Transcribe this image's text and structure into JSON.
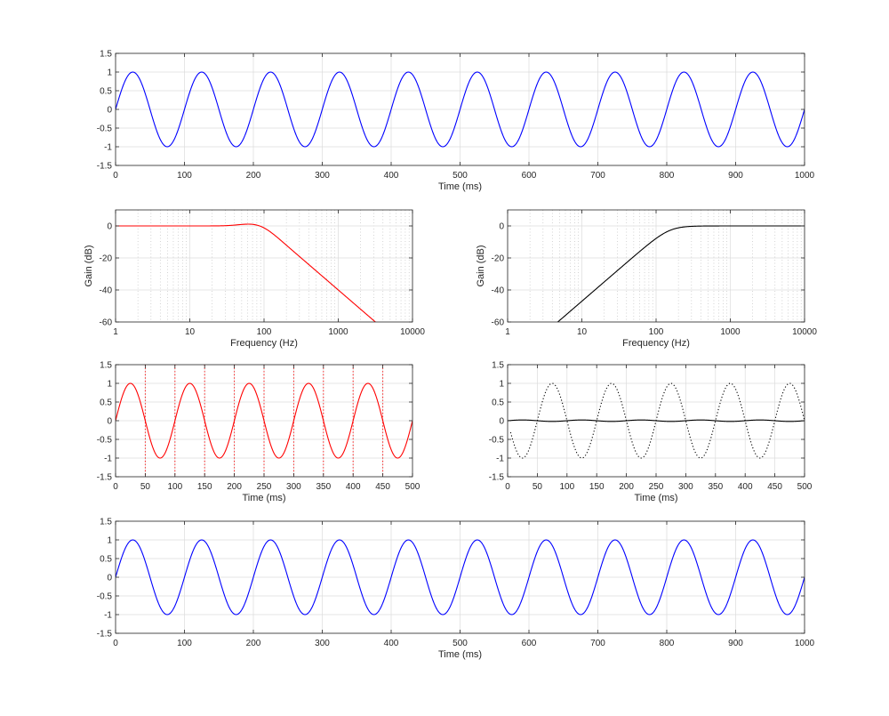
{
  "figure": {
    "background": "#ffffff",
    "axis_color": "#262626",
    "grid_color": "#dcdcdc"
  },
  "chart_data": [
    {
      "id": "panel-1",
      "type": "line",
      "title": "",
      "xlabel": "Time (ms)",
      "ylabel": "",
      "xscale": "linear",
      "xlim": [
        0,
        1000
      ],
      "ylim": [
        -1.5,
        1.5
      ],
      "xticks": [
        0,
        100,
        200,
        300,
        400,
        500,
        600,
        700,
        800,
        900,
        1000
      ],
      "xtick_labels": [
        "0",
        "100",
        "200",
        "300",
        "400",
        "500",
        "600",
        "700",
        "800",
        "900",
        "1000"
      ],
      "yticks": [
        1.5,
        1,
        0.5,
        0,
        -0.5,
        -1,
        -1.5
      ],
      "ytick_labels": [
        "1.5",
        "1",
        "0.5",
        "0",
        "-0.5",
        "-1",
        "-1.5"
      ],
      "grid": true,
      "series": [
        {
          "kind": "sine",
          "color": "#0000ff",
          "style": "solid",
          "amplitude": 1,
          "frequency_hz": 10,
          "phase_deg": 0,
          "x_start": 0,
          "x_end": 1000
        }
      ]
    },
    {
      "id": "panel-2",
      "type": "line",
      "title": "",
      "xlabel": "Frequency (Hz)",
      "ylabel": "Gain (dB)",
      "xscale": "log",
      "xlim": [
        1,
        10000
      ],
      "ylim": [
        -60,
        10
      ],
      "xticks": [
        1,
        10,
        100,
        1000,
        10000
      ],
      "xtick_labels": [
        "1",
        "10",
        "100",
        "1000",
        "10000"
      ],
      "yticks": [
        0,
        -20,
        -40,
        -60
      ],
      "ytick_labels": [
        "0",
        "-20",
        "-40",
        "-60"
      ],
      "grid": true,
      "series": [
        {
          "kind": "lowpass",
          "color": "#ff0000",
          "style": "solid",
          "cutoff_hz": 100,
          "peak_db": 2,
          "peak_hz": 80,
          "order": 2
        }
      ]
    },
    {
      "id": "panel-3",
      "type": "line",
      "title": "",
      "xlabel": "Frequency (Hz)",
      "ylabel": "Gain (dB)",
      "xscale": "log",
      "xlim": [
        1,
        10000
      ],
      "ylim": [
        -60,
        10
      ],
      "xticks": [
        1,
        10,
        100,
        1000,
        10000
      ],
      "xtick_labels": [
        "1",
        "10",
        "100",
        "1000",
        "10000"
      ],
      "yticks": [
        0,
        -20,
        -40,
        -60
      ],
      "ytick_labels": [
        "0",
        "-20",
        "-40",
        "-60"
      ],
      "grid": true,
      "series": [
        {
          "kind": "highpass",
          "color": "#000000",
          "style": "solid",
          "cutoff_hz": 150,
          "order": 2
        }
      ]
    },
    {
      "id": "panel-4",
      "type": "line",
      "title": "",
      "xlabel": "Time (ms)",
      "ylabel": "",
      "xscale": "linear",
      "xlim": [
        0,
        500
      ],
      "ylim": [
        -1.5,
        1.5
      ],
      "xticks": [
        0,
        50,
        100,
        150,
        200,
        250,
        300,
        350,
        400,
        450,
        500
      ],
      "xtick_labels": [
        "0",
        "50",
        "100",
        "150",
        "200",
        "250",
        "300",
        "350",
        "400",
        "450",
        "500"
      ],
      "yticks": [
        1.5,
        1,
        0.5,
        0,
        -0.5,
        -1,
        -1.5
      ],
      "ytick_labels": [
        "1.5",
        "1",
        "0.5",
        "0",
        "-0.5",
        "-1",
        "-1.5"
      ],
      "grid": true,
      "vlines": {
        "x": [
          50,
          100,
          150,
          200,
          250,
          300,
          350,
          400,
          450
        ],
        "color": "#ff0000",
        "style": "dotted"
      },
      "series": [
        {
          "kind": "sine",
          "color": "#ff0000",
          "style": "solid",
          "amplitude": 1,
          "frequency_hz": 10,
          "phase_deg": 0,
          "x_start": 0,
          "x_end": 500
        }
      ]
    },
    {
      "id": "panel-5",
      "type": "line",
      "title": "",
      "xlabel": "Time (ms)",
      "ylabel": "",
      "xscale": "linear",
      "xlim": [
        0,
        500
      ],
      "ylim": [
        -1.5,
        1.5
      ],
      "xticks": [
        0,
        50,
        100,
        150,
        200,
        250,
        300,
        350,
        400,
        450,
        500
      ],
      "xtick_labels": [
        "0",
        "50",
        "100",
        "150",
        "200",
        "250",
        "300",
        "350",
        "400",
        "450",
        "500"
      ],
      "yticks": [
        1.5,
        1,
        0.5,
        0,
        -0.5,
        -1,
        -1.5
      ],
      "ytick_labels": [
        "1.5",
        "1",
        "0.5",
        "0",
        "-0.5",
        "-1",
        "-1.5"
      ],
      "grid": true,
      "series": [
        {
          "kind": "sine",
          "color": "#000000",
          "style": "dotted",
          "amplitude": 1,
          "frequency_hz": 10,
          "phase_deg": 180,
          "x_start": 5,
          "x_end": 500
        },
        {
          "kind": "sine",
          "color": "#000000",
          "style": "solid",
          "amplitude": 0.02,
          "frequency_hz": 10,
          "phase_deg": 0,
          "x_start": 0,
          "x_end": 500
        }
      ]
    },
    {
      "id": "panel-6",
      "type": "line",
      "title": "",
      "xlabel": "Time (ms)",
      "ylabel": "",
      "xscale": "linear",
      "xlim": [
        0,
        1000
      ],
      "ylim": [
        -1.5,
        1.5
      ],
      "xticks": [
        0,
        100,
        200,
        300,
        400,
        500,
        600,
        700,
        800,
        900,
        1000
      ],
      "xtick_labels": [
        "0",
        "100",
        "200",
        "300",
        "400",
        "500",
        "600",
        "700",
        "800",
        "900",
        "1000"
      ],
      "yticks": [
        1.5,
        1,
        0.5,
        0,
        -0.5,
        -1,
        -1.5
      ],
      "ytick_labels": [
        "1.5",
        "1",
        "0.5",
        "0",
        "-0.5",
        "-1",
        "-1.5"
      ],
      "grid": true,
      "series": [
        {
          "kind": "sine",
          "color": "#0000ff",
          "style": "solid",
          "amplitude": 1,
          "frequency_hz": 10,
          "phase_deg": 0,
          "x_start": 0,
          "x_end": 1000
        }
      ]
    }
  ]
}
